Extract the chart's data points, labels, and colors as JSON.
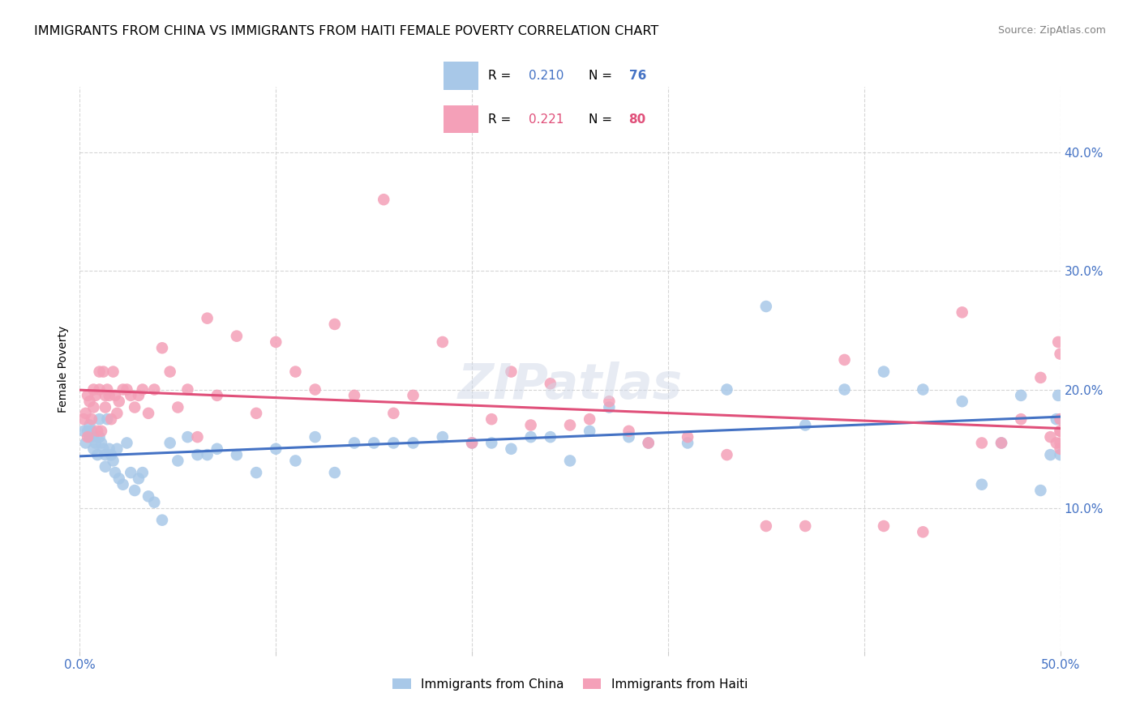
{
  "title": "IMMIGRANTS FROM CHINA VS IMMIGRANTS FROM HAITI FEMALE POVERTY CORRELATION CHART",
  "source": "Source: ZipAtlas.com",
  "ylabel": "Female Poverty",
  "xlim": [
    0.0,
    0.5
  ],
  "ylim": [
    -0.02,
    0.455
  ],
  "china_R": "0.210",
  "china_N": "76",
  "haiti_R": "0.221",
  "haiti_N": "80",
  "china_color": "#a8c8e8",
  "haiti_color": "#f4a0b8",
  "china_line_color": "#4472c4",
  "haiti_line_color": "#e0507a",
  "legend_label_china": "Immigrants from China",
  "legend_label_haiti": "Immigrants from Haiti",
  "china_x": [
    0.002,
    0.003,
    0.004,
    0.005,
    0.005,
    0.006,
    0.007,
    0.007,
    0.008,
    0.009,
    0.01,
    0.01,
    0.011,
    0.012,
    0.013,
    0.013,
    0.014,
    0.015,
    0.016,
    0.017,
    0.018,
    0.019,
    0.02,
    0.022,
    0.024,
    0.026,
    0.028,
    0.03,
    0.032,
    0.035,
    0.038,
    0.042,
    0.046,
    0.05,
    0.055,
    0.06,
    0.065,
    0.07,
    0.08,
    0.09,
    0.1,
    0.11,
    0.12,
    0.13,
    0.14,
    0.15,
    0.16,
    0.17,
    0.185,
    0.2,
    0.21,
    0.22,
    0.23,
    0.24,
    0.25,
    0.26,
    0.27,
    0.28,
    0.29,
    0.31,
    0.33,
    0.35,
    0.37,
    0.39,
    0.41,
    0.43,
    0.45,
    0.46,
    0.47,
    0.48,
    0.49,
    0.495,
    0.498,
    0.499,
    0.5,
    0.5
  ],
  "china_y": [
    0.165,
    0.155,
    0.165,
    0.16,
    0.17,
    0.165,
    0.15,
    0.16,
    0.155,
    0.145,
    0.16,
    0.175,
    0.155,
    0.15,
    0.145,
    0.135,
    0.175,
    0.15,
    0.145,
    0.14,
    0.13,
    0.15,
    0.125,
    0.12,
    0.155,
    0.13,
    0.115,
    0.125,
    0.13,
    0.11,
    0.105,
    0.09,
    0.155,
    0.14,
    0.16,
    0.145,
    0.145,
    0.15,
    0.145,
    0.13,
    0.15,
    0.14,
    0.16,
    0.13,
    0.155,
    0.155,
    0.155,
    0.155,
    0.16,
    0.155,
    0.155,
    0.15,
    0.16,
    0.16,
    0.14,
    0.165,
    0.185,
    0.16,
    0.155,
    0.155,
    0.2,
    0.27,
    0.17,
    0.2,
    0.215,
    0.2,
    0.19,
    0.12,
    0.155,
    0.195,
    0.115,
    0.145,
    0.175,
    0.195,
    0.145,
    0.175
  ],
  "haiti_x": [
    0.002,
    0.003,
    0.004,
    0.004,
    0.005,
    0.006,
    0.007,
    0.007,
    0.008,
    0.009,
    0.01,
    0.01,
    0.011,
    0.012,
    0.013,
    0.013,
    0.014,
    0.015,
    0.016,
    0.017,
    0.018,
    0.019,
    0.02,
    0.022,
    0.024,
    0.026,
    0.028,
    0.03,
    0.032,
    0.035,
    0.038,
    0.042,
    0.046,
    0.05,
    0.055,
    0.06,
    0.065,
    0.07,
    0.08,
    0.09,
    0.1,
    0.11,
    0.12,
    0.13,
    0.14,
    0.155,
    0.16,
    0.17,
    0.185,
    0.2,
    0.21,
    0.22,
    0.23,
    0.24,
    0.25,
    0.26,
    0.27,
    0.28,
    0.29,
    0.31,
    0.33,
    0.35,
    0.37,
    0.39,
    0.41,
    0.43,
    0.45,
    0.46,
    0.47,
    0.48,
    0.49,
    0.495,
    0.498,
    0.499,
    0.5,
    0.5,
    0.5,
    0.5,
    0.5,
    0.5
  ],
  "haiti_y": [
    0.175,
    0.18,
    0.195,
    0.16,
    0.19,
    0.175,
    0.185,
    0.2,
    0.195,
    0.165,
    0.215,
    0.2,
    0.165,
    0.215,
    0.185,
    0.195,
    0.2,
    0.195,
    0.175,
    0.215,
    0.195,
    0.18,
    0.19,
    0.2,
    0.2,
    0.195,
    0.185,
    0.195,
    0.2,
    0.18,
    0.2,
    0.235,
    0.215,
    0.185,
    0.2,
    0.16,
    0.26,
    0.195,
    0.245,
    0.18,
    0.24,
    0.215,
    0.2,
    0.255,
    0.195,
    0.36,
    0.18,
    0.195,
    0.24,
    0.155,
    0.175,
    0.215,
    0.17,
    0.205,
    0.17,
    0.175,
    0.19,
    0.165,
    0.155,
    0.16,
    0.145,
    0.085,
    0.085,
    0.225,
    0.085,
    0.08,
    0.265,
    0.155,
    0.155,
    0.175,
    0.21,
    0.16,
    0.155,
    0.24,
    0.175,
    0.165,
    0.23,
    0.15,
    0.155,
    0.165
  ]
}
